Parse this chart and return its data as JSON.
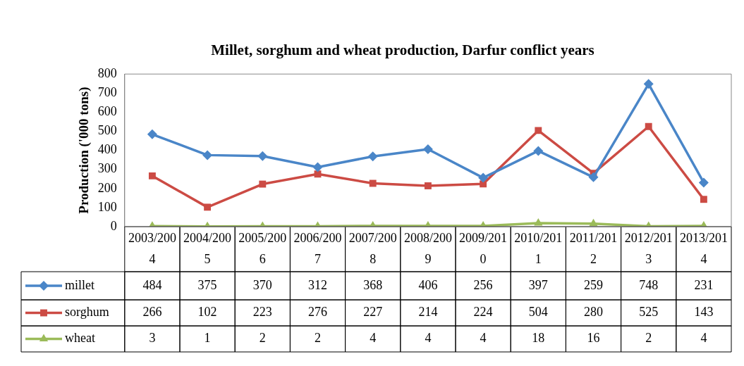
{
  "chart_data": {
    "type": "line",
    "title": "Millet, sorghum and wheat production, Darfur conflict years",
    "ylabel": "Production ('000 tons)",
    "categories": [
      "2003/2004",
      "2004/2005",
      "2005/2006",
      "2006/2007",
      "2007/2008",
      "2008/2009",
      "2009/2010",
      "2010/2011",
      "2011/2012",
      "2012/2013",
      "2013/2014"
    ],
    "series": [
      {
        "name": "millet",
        "color": "#4a86c8",
        "marker": "diamond",
        "values": [
          484,
          375,
          370,
          312,
          368,
          406,
          256,
          397,
          259,
          748,
          231
        ]
      },
      {
        "name": "sorghum",
        "color": "#cc4b44",
        "marker": "square",
        "values": [
          266,
          102,
          223,
          276,
          227,
          214,
          224,
          504,
          280,
          525,
          143
        ]
      },
      {
        "name": "wheat",
        "color": "#9bbb59",
        "marker": "triangle",
        "values": [
          3,
          1,
          2,
          2,
          4,
          4,
          4,
          18,
          16,
          2,
          4
        ]
      }
    ],
    "ylim": [
      0,
      800
    ],
    "yticks": [
      0,
      100,
      200,
      300,
      400,
      500,
      600,
      700,
      800
    ],
    "grid": false,
    "legend": "bottom left",
    "data_labels": true,
    "line_style": "solid"
  }
}
